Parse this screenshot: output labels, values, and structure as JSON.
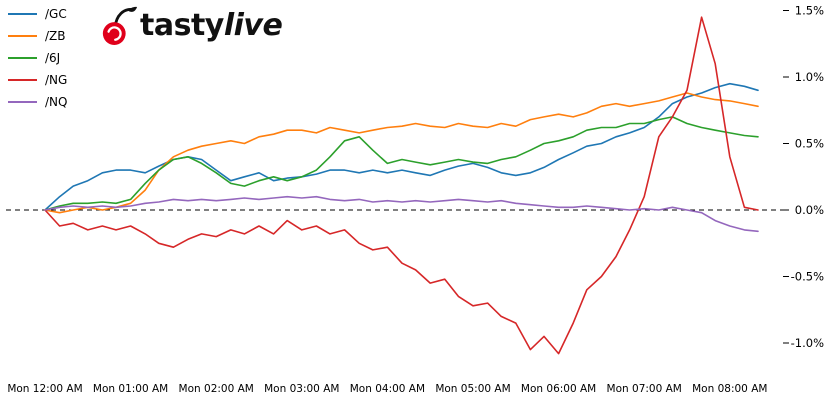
{
  "logo": {
    "brand_prefix": "tasty",
    "brand_suffix": "live",
    "cherry_color": "#e0001b"
  },
  "chart_data": {
    "type": "line",
    "title": "",
    "legend_position": "top-left",
    "grid": false,
    "zero_line": {
      "value": 0.0,
      "style": "dashed",
      "color": "#000000"
    },
    "x_axis": {
      "unit": "hours from Mon 12:00 AM",
      "min": 0,
      "max": 8.33,
      "tick_positions": [
        0,
        1,
        2,
        3,
        4,
        5,
        6,
        7,
        8
      ],
      "tick_labels": [
        "Mon 12:00 AM",
        "Mon 01:00 AM",
        "Mon 02:00 AM",
        "Mon 03:00 AM",
        "Mon 04:00 AM",
        "Mon 05:00 AM",
        "Mon 06:00 AM",
        "Mon 07:00 AM",
        "Mon 08:00 AM"
      ]
    },
    "y_axis": {
      "unit": "percent change",
      "min": -1.25,
      "max": 1.55,
      "position": "right",
      "tick_values": [
        1.5,
        1.0,
        0.5,
        0.0,
        -0.5,
        -1.0
      ],
      "tick_labels": [
        "1.5%",
        "1.0%",
        "0.5%",
        "0.0%",
        "-0.5%",
        "-1.0%"
      ]
    },
    "x": [
      0,
      0.17,
      0.33,
      0.5,
      0.67,
      0.83,
      1,
      1.17,
      1.33,
      1.5,
      1.67,
      1.83,
      2,
      2.17,
      2.33,
      2.5,
      2.67,
      2.83,
      3,
      3.17,
      3.33,
      3.5,
      3.67,
      3.83,
      4,
      4.17,
      4.33,
      4.5,
      4.67,
      4.83,
      5,
      5.17,
      5.33,
      5.5,
      5.67,
      5.83,
      6,
      6.17,
      6.33,
      6.5,
      6.67,
      6.83,
      7,
      7.17,
      7.33,
      7.5,
      7.67,
      7.83,
      8,
      8.17,
      8.33
    ],
    "series": [
      {
        "name": "/GC",
        "color": "#1f77b4",
        "values": [
          0.0,
          0.1,
          0.18,
          0.22,
          0.28,
          0.3,
          0.3,
          0.28,
          0.33,
          0.38,
          0.4,
          0.38,
          0.3,
          0.22,
          0.25,
          0.28,
          0.22,
          0.24,
          0.25,
          0.27,
          0.3,
          0.3,
          0.28,
          0.3,
          0.28,
          0.3,
          0.28,
          0.26,
          0.3,
          0.33,
          0.35,
          0.32,
          0.28,
          0.26,
          0.28,
          0.32,
          0.38,
          0.43,
          0.48,
          0.5,
          0.55,
          0.58,
          0.62,
          0.7,
          0.8,
          0.85,
          0.88,
          0.92,
          0.95,
          0.93,
          0.9
        ]
      },
      {
        "name": "/ZB",
        "color": "#ff7f0e",
        "values": [
          0.0,
          -0.02,
          0.0,
          0.02,
          0.0,
          0.02,
          0.05,
          0.15,
          0.3,
          0.4,
          0.45,
          0.48,
          0.5,
          0.52,
          0.5,
          0.55,
          0.57,
          0.6,
          0.6,
          0.58,
          0.62,
          0.6,
          0.58,
          0.6,
          0.62,
          0.63,
          0.65,
          0.63,
          0.62,
          0.65,
          0.63,
          0.62,
          0.65,
          0.63,
          0.68,
          0.7,
          0.72,
          0.7,
          0.73,
          0.78,
          0.8,
          0.78,
          0.8,
          0.82,
          0.85,
          0.88,
          0.85,
          0.83,
          0.82,
          0.8,
          0.78
        ]
      },
      {
        "name": "/6J",
        "color": "#2ca02c",
        "values": [
          0.0,
          0.03,
          0.05,
          0.05,
          0.06,
          0.05,
          0.08,
          0.2,
          0.3,
          0.38,
          0.4,
          0.35,
          0.28,
          0.2,
          0.18,
          0.22,
          0.25,
          0.22,
          0.25,
          0.3,
          0.4,
          0.52,
          0.55,
          0.45,
          0.35,
          0.38,
          0.36,
          0.34,
          0.36,
          0.38,
          0.36,
          0.35,
          0.38,
          0.4,
          0.45,
          0.5,
          0.52,
          0.55,
          0.6,
          0.62,
          0.62,
          0.65,
          0.65,
          0.68,
          0.7,
          0.65,
          0.62,
          0.6,
          0.58,
          0.56,
          0.55
        ]
      },
      {
        "name": "/NG",
        "color": "#d62728",
        "values": [
          0.0,
          -0.12,
          -0.1,
          -0.15,
          -0.12,
          -0.15,
          -0.12,
          -0.18,
          -0.25,
          -0.28,
          -0.22,
          -0.18,
          -0.2,
          -0.15,
          -0.18,
          -0.12,
          -0.18,
          -0.08,
          -0.15,
          -0.12,
          -0.18,
          -0.15,
          -0.25,
          -0.3,
          -0.28,
          -0.4,
          -0.45,
          -0.55,
          -0.52,
          -0.65,
          -0.72,
          -0.7,
          -0.8,
          -0.85,
          -1.05,
          -0.95,
          -1.08,
          -0.85,
          -0.6,
          -0.5,
          -0.35,
          -0.15,
          0.1,
          0.55,
          0.7,
          0.9,
          1.45,
          1.1,
          0.4,
          0.02,
          0.0
        ]
      },
      {
        "name": "/NQ",
        "color": "#9467bd",
        "values": [
          0.0,
          0.02,
          0.03,
          0.02,
          0.03,
          0.02,
          0.03,
          0.05,
          0.06,
          0.08,
          0.07,
          0.08,
          0.07,
          0.08,
          0.09,
          0.08,
          0.09,
          0.1,
          0.09,
          0.1,
          0.08,
          0.07,
          0.08,
          0.06,
          0.07,
          0.06,
          0.07,
          0.06,
          0.07,
          0.08,
          0.07,
          0.06,
          0.07,
          0.05,
          0.04,
          0.03,
          0.02,
          0.02,
          0.03,
          0.02,
          0.01,
          0.0,
          0.01,
          0.0,
          0.02,
          0.0,
          -0.02,
          -0.08,
          -0.12,
          -0.15,
          -0.16
        ]
      }
    ]
  }
}
